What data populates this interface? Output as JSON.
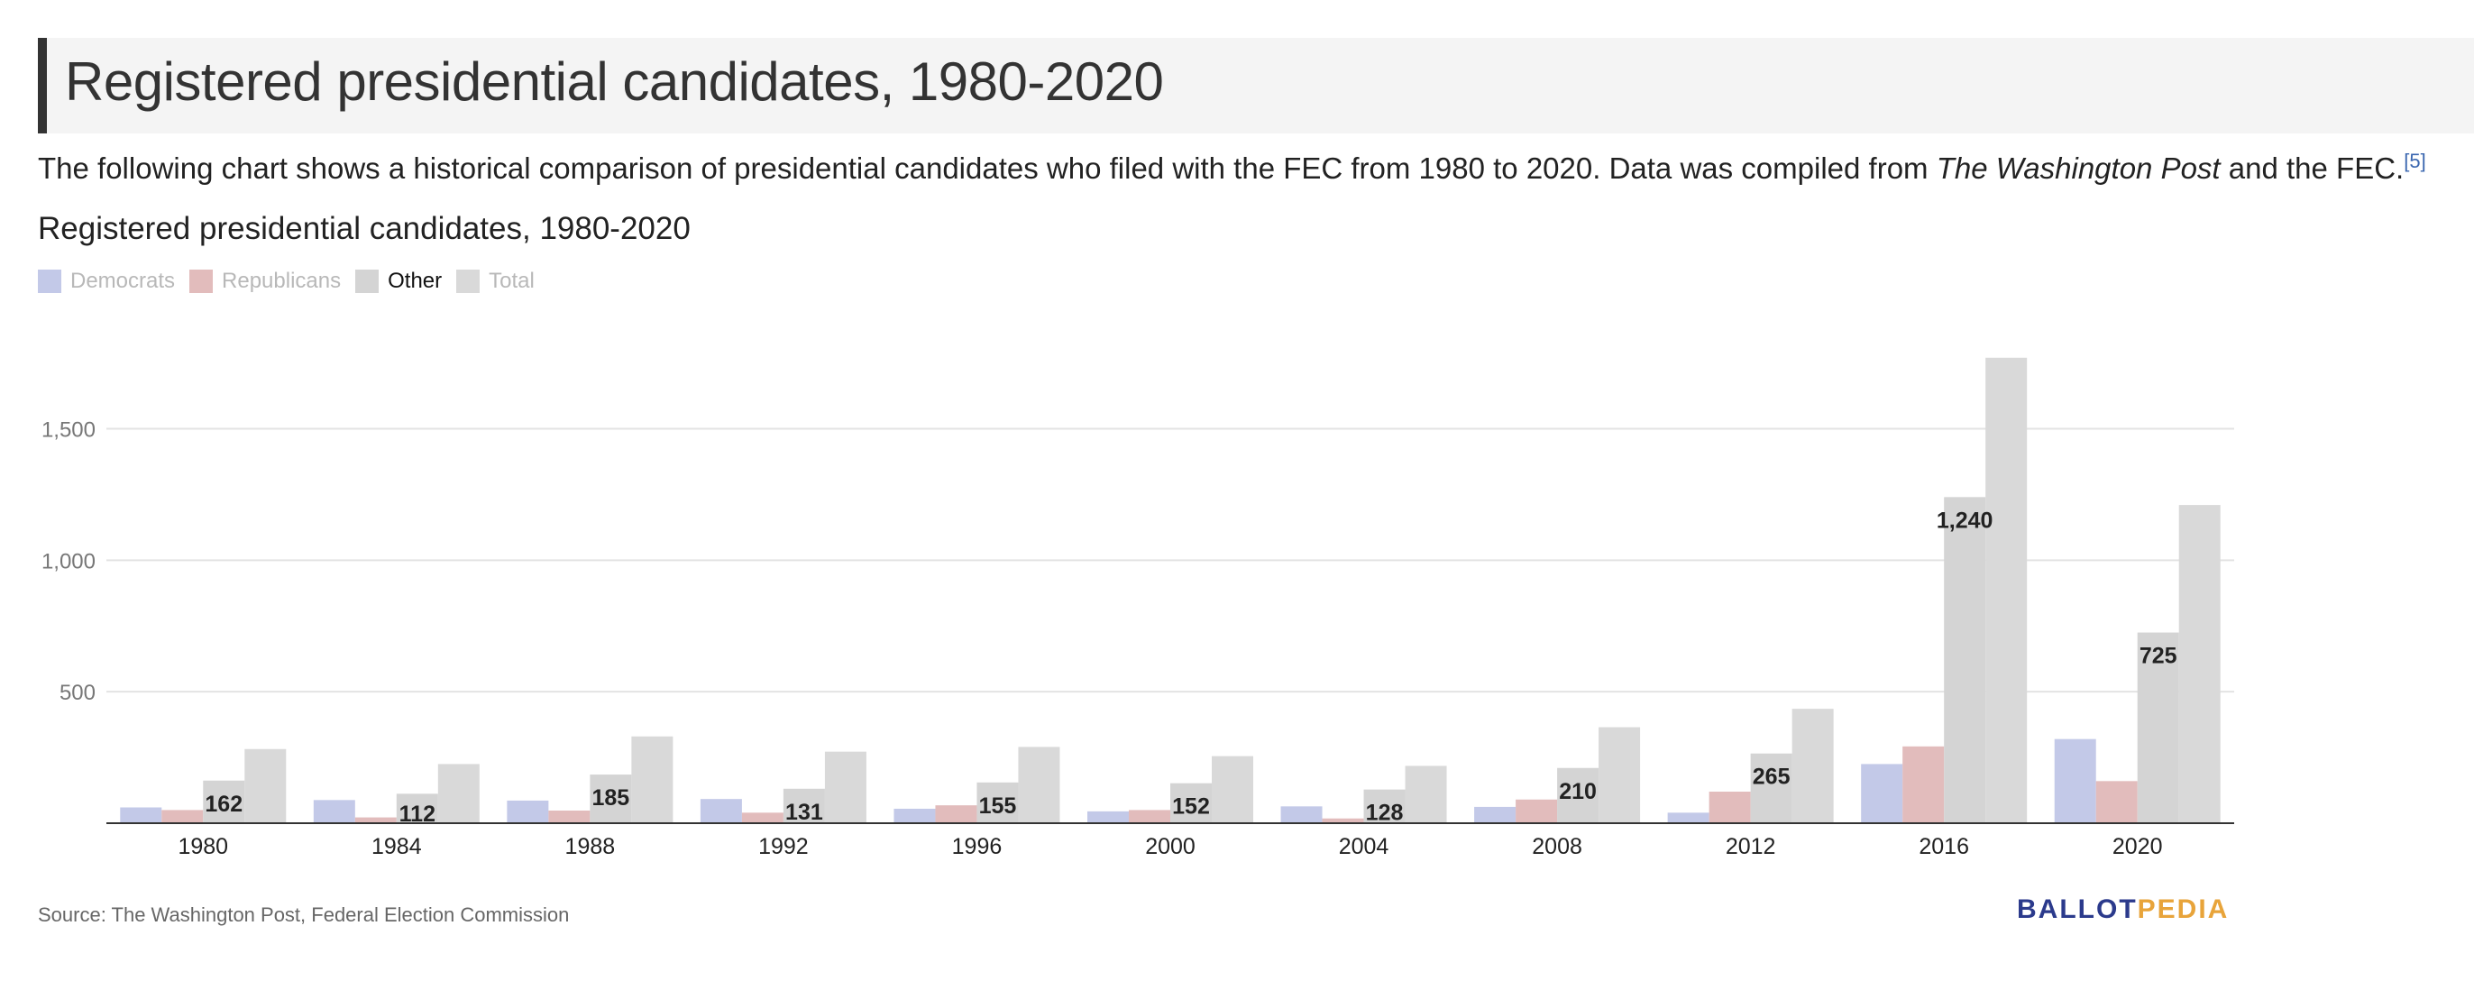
{
  "header": {
    "title": "Registered presidential candidates, 1980-2020"
  },
  "intro": {
    "part1": "The following chart shows a historical comparison of presidential candidates who filed with the FEC from 1980 to 2020. Data was compiled from ",
    "italic": "The Washington Post",
    "part2": " and the FEC.",
    "ref": "[5]"
  },
  "chart_data": {
    "type": "bar",
    "title": "Registered presidential candidates, 1980-2020",
    "xlabel": "",
    "ylabel": "",
    "categories": [
      "1980",
      "1984",
      "1988",
      "1992",
      "1996",
      "2000",
      "2004",
      "2008",
      "2012",
      "2016",
      "2020"
    ],
    "ylim": [
      0,
      1800
    ],
    "yticks": [
      500,
      1000,
      1500
    ],
    "ytick_labels": [
      "500",
      "1,000",
      "1,500"
    ],
    "grid": true,
    "legend_position": "top-left",
    "data_labels_series": "Other",
    "series": [
      {
        "name": "Democrats",
        "color": "#c3c9e8",
        "legend_active": false,
        "values": [
          60,
          88,
          86,
          92,
          55,
          45,
          64,
          62,
          40,
          225,
          320
        ]
      },
      {
        "name": "Republicans",
        "color": "#e2bcbc",
        "legend_active": false,
        "values": [
          50,
          22,
          48,
          40,
          68,
          50,
          18,
          90,
          120,
          292,
          160
        ]
      },
      {
        "name": "Other",
        "color": "#d4d4d4",
        "legend_active": true,
        "values": [
          162,
          112,
          185,
          131,
          155,
          152,
          128,
          210,
          265,
          1240,
          725
        ],
        "labels": [
          "162",
          "112",
          "185",
          "131",
          "155",
          "152",
          "128",
          "210",
          "265",
          "1,240",
          "725"
        ]
      },
      {
        "name": "Total",
        "color": "#d9d9d9",
        "legend_active": false,
        "values": [
          282,
          225,
          330,
          272,
          290,
          255,
          218,
          365,
          435,
          1770,
          1210
        ]
      }
    ]
  },
  "source": "Source: The Washington Post, Federal Election Commission",
  "logo": {
    "part1": "BALLOT",
    "part2": "PEDIA"
  }
}
